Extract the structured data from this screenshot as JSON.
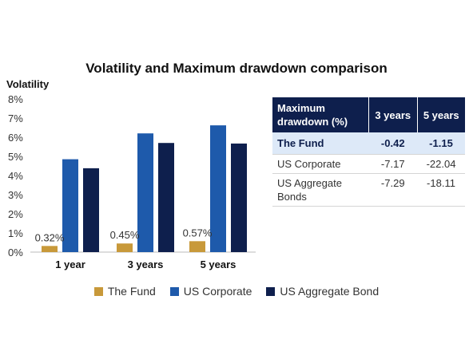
{
  "chart_data": [
    {
      "type": "bar",
      "title": "Volatility and Maximum drawdown comparison",
      "ylabel": "Volatility",
      "xlabel": "",
      "ylim": [
        0,
        8
      ],
      "yticks": [
        "0%",
        "1%",
        "2%",
        "3%",
        "4%",
        "5%",
        "6%",
        "7%",
        "8%"
      ],
      "categories": [
        "1 year",
        "3 years",
        "5 years"
      ],
      "series": [
        {
          "name": "The Fund",
          "values": [
            0.32,
            0.45,
            0.57
          ],
          "color": "#c8993a",
          "data_labels": [
            "0.32%",
            "0.45%",
            "0.57%"
          ]
        },
        {
          "name": "US Corporate",
          "values": [
            4.85,
            6.2,
            6.62
          ],
          "color": "#1e5aab"
        },
        {
          "name": "US Aggregate Bond",
          "values": [
            4.38,
            5.7,
            5.67
          ],
          "color": "#0e1f4d"
        }
      ],
      "legend_position": "bottom",
      "grid": false
    },
    {
      "type": "table",
      "columns": [
        "Maximum drawdown (%)",
        "3 years",
        "5 years"
      ],
      "rows": [
        {
          "label": "The Fund",
          "values": [
            "-0.42",
            "-1.15"
          ],
          "highlight": true
        },
        {
          "label": "US Corporate",
          "values": [
            "-7.17",
            "-22.04"
          ]
        },
        {
          "label": "US Aggregate Bonds",
          "values": [
            "-7.29",
            "-18.11"
          ]
        }
      ]
    }
  ]
}
